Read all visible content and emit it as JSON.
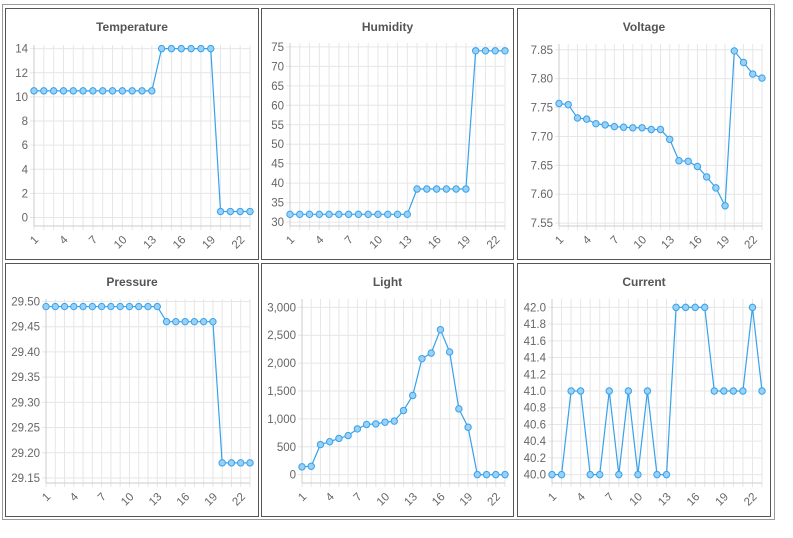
{
  "style": {
    "line_color": "#36a2eb",
    "point_fill": "#9ad0f5",
    "grid_color": "#e6e6e6",
    "text_color": "#666666",
    "title_color": "#555555"
  },
  "chart_data": [
    {
      "type": "line",
      "title": "Temperature",
      "x": [
        1,
        2,
        3,
        4,
        5,
        6,
        7,
        8,
        9,
        10,
        11,
        12,
        13,
        14,
        15,
        16,
        17,
        18,
        19,
        20,
        21,
        22,
        23
      ],
      "xticks": [
        "1",
        "4",
        "7",
        "10",
        "13",
        "16",
        "19",
        "22"
      ],
      "y": [
        10.5,
        10.5,
        10.5,
        10.5,
        10.5,
        10.5,
        10.5,
        10.5,
        10.5,
        10.5,
        10.5,
        10.5,
        10.5,
        14,
        14,
        14,
        14,
        14,
        14,
        0.5,
        0.5,
        0.5,
        0.5
      ],
      "ylim": [
        -0.7,
        14.3
      ],
      "yticks": [
        "0",
        "2",
        "4",
        "6",
        "8",
        "10",
        "12",
        "14"
      ],
      "yticks_values": [
        0,
        2,
        4,
        6,
        8,
        10,
        12,
        14
      ]
    },
    {
      "type": "line",
      "title": "Humidity",
      "x": [
        1,
        2,
        3,
        4,
        5,
        6,
        7,
        8,
        9,
        10,
        11,
        12,
        13,
        14,
        15,
        16,
        17,
        18,
        19,
        20,
        21,
        22,
        23
      ],
      "xticks": [
        "1",
        "4",
        "7",
        "10",
        "13",
        "16",
        "19",
        "22"
      ],
      "y": [
        32,
        32,
        32,
        32,
        32,
        32,
        32,
        32,
        32,
        32,
        32,
        32,
        32,
        38.5,
        38.5,
        38.5,
        38.5,
        38.5,
        38.5,
        74,
        74,
        74,
        74
      ],
      "ylim": [
        29,
        76
      ],
      "yticks": [
        "30",
        "35",
        "40",
        "45",
        "50",
        "55",
        "60",
        "65",
        "70",
        "75"
      ],
      "yticks_values": [
        30,
        35,
        40,
        45,
        50,
        55,
        60,
        65,
        70,
        75
      ]
    },
    {
      "type": "line",
      "title": "Voltage",
      "x": [
        1,
        2,
        3,
        4,
        5,
        6,
        7,
        8,
        9,
        10,
        11,
        12,
        13,
        14,
        15,
        16,
        17,
        18,
        19,
        20,
        21,
        22,
        23
      ],
      "xticks": [
        "1",
        "4",
        "7",
        "10",
        "13",
        "16",
        "19",
        "22"
      ],
      "y": [
        7.757,
        7.755,
        7.732,
        7.73,
        7.722,
        7.72,
        7.717,
        7.716,
        7.715,
        7.715,
        7.712,
        7.712,
        7.695,
        7.658,
        7.657,
        7.648,
        7.63,
        7.611,
        7.58,
        7.848,
        7.828,
        7.808,
        7.801
      ],
      "ylim": [
        7.545,
        7.86
      ],
      "yticks": [
        "7.55",
        "7.60",
        "7.65",
        "7.70",
        "7.75",
        "7.80",
        "7.85"
      ],
      "yticks_values": [
        7.55,
        7.6,
        7.65,
        7.7,
        7.75,
        7.8,
        7.85
      ]
    },
    {
      "type": "line",
      "title": "Pressure",
      "x": [
        1,
        2,
        3,
        4,
        5,
        6,
        7,
        8,
        9,
        10,
        11,
        12,
        13,
        14,
        15,
        16,
        17,
        18,
        19,
        20,
        21,
        22,
        23
      ],
      "xticks": [
        "1",
        "4",
        "7",
        "10",
        "13",
        "16",
        "19",
        "22"
      ],
      "y": [
        29.49,
        29.49,
        29.49,
        29.49,
        29.49,
        29.49,
        29.49,
        29.49,
        29.49,
        29.49,
        29.49,
        29.49,
        29.49,
        29.46,
        29.46,
        29.46,
        29.46,
        29.46,
        29.46,
        29.18,
        29.18,
        29.18,
        29.18
      ],
      "ylim": [
        29.14,
        29.505
      ],
      "yticks": [
        "29.15",
        "29.20",
        "29.25",
        "29.30",
        "29.35",
        "29.40",
        "29.45",
        "29.50"
      ],
      "yticks_values": [
        29.15,
        29.2,
        29.25,
        29.3,
        29.35,
        29.4,
        29.45,
        29.5
      ]
    },
    {
      "type": "line",
      "title": "Light",
      "x": [
        1,
        2,
        3,
        4,
        5,
        6,
        7,
        8,
        9,
        10,
        11,
        12,
        13,
        14,
        15,
        16,
        17,
        18,
        19,
        20,
        21,
        22,
        23
      ],
      "xticks": [
        "1",
        "4",
        "7",
        "10",
        "13",
        "16",
        "19",
        "22"
      ],
      "y": [
        140,
        150,
        540,
        590,
        650,
        700,
        820,
        900,
        910,
        940,
        960,
        1150,
        1420,
        2080,
        2180,
        2600,
        2200,
        1180,
        850,
        0,
        0,
        0,
        0
      ],
      "ylim": [
        -150,
        3150
      ],
      "yticks": [
        "0",
        "500",
        "1,000",
        "1,500",
        "2,000",
        "2,500",
        "3,000"
      ],
      "yticks_values": [
        0,
        500,
        1000,
        1500,
        2000,
        2500,
        3000
      ]
    },
    {
      "type": "line",
      "title": "Current",
      "x": [
        1,
        2,
        3,
        4,
        5,
        6,
        7,
        8,
        9,
        10,
        11,
        12,
        13,
        14,
        15,
        16,
        17,
        18,
        19,
        20,
        21,
        22,
        23
      ],
      "xticks": [
        "1",
        "4",
        "7",
        "10",
        "13",
        "16",
        "19",
        "22"
      ],
      "y": [
        40,
        40,
        41,
        41,
        40,
        40,
        41,
        40,
        41,
        40,
        41,
        40,
        40,
        42,
        42,
        42,
        42,
        41,
        41,
        41,
        41,
        42,
        41
      ],
      "ylim": [
        39.9,
        42.1
      ],
      "yticks": [
        "40.0",
        "40.2",
        "40.4",
        "40.6",
        "40.8",
        "41.0",
        "41.2",
        "41.4",
        "41.6",
        "41.8",
        "42.0"
      ],
      "yticks_values": [
        40,
        40.2,
        40.4,
        40.6,
        40.8,
        41,
        41.2,
        41.4,
        41.6,
        41.8,
        42
      ]
    }
  ]
}
